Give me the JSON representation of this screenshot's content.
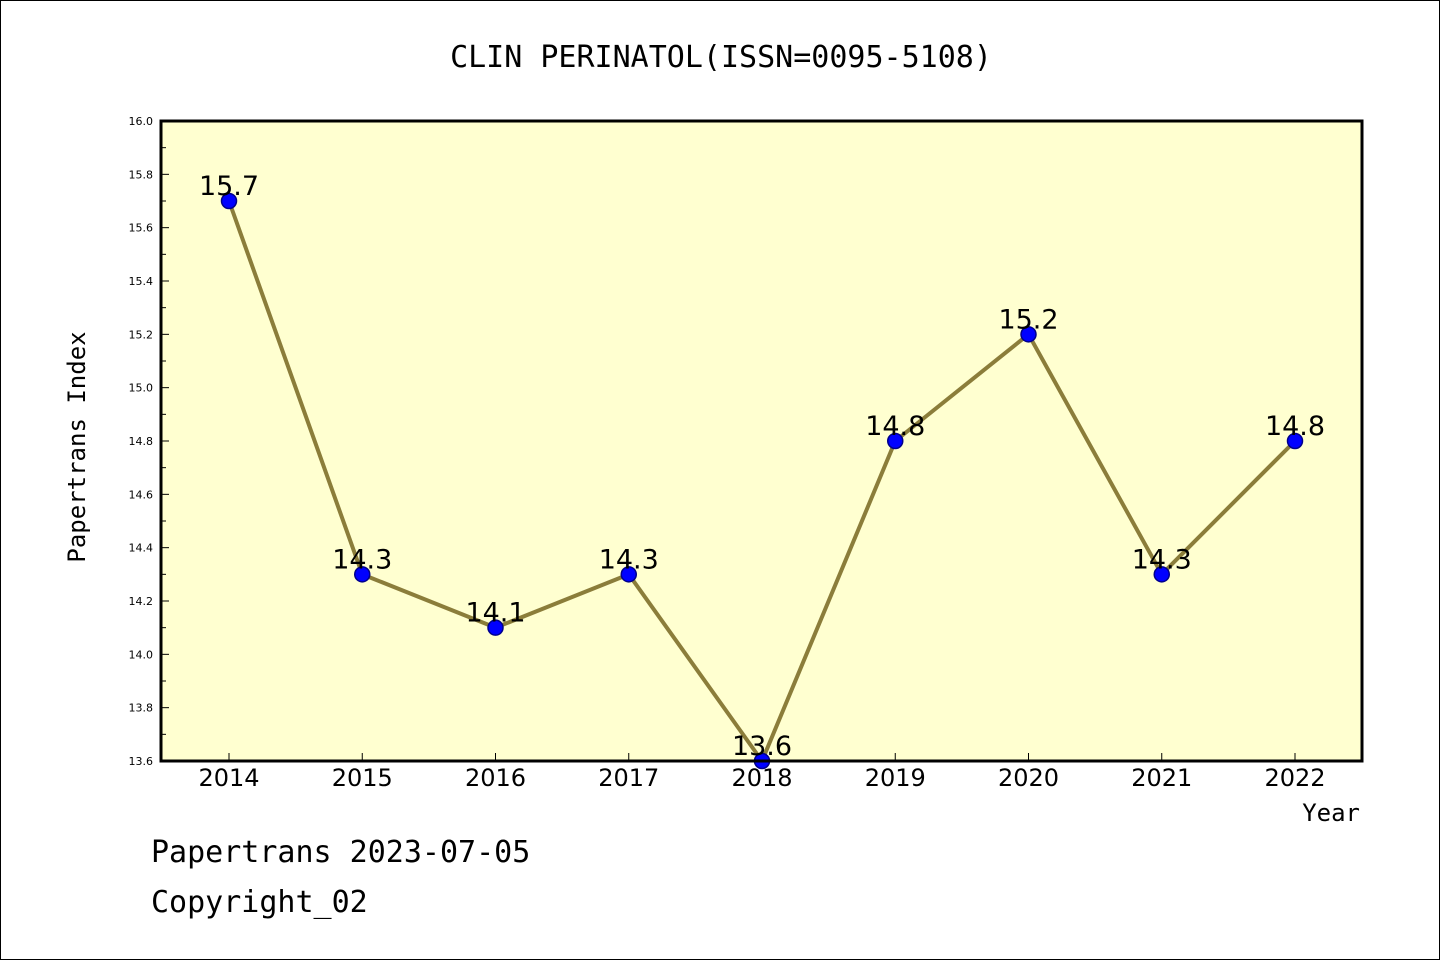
{
  "chart_data": {
    "type": "line",
    "title": "CLIN PERINATOL(ISSN=0095-5108)",
    "xlabel": "Year",
    "ylabel": "Papertrans Index",
    "categories": [
      "2014",
      "2015",
      "2016",
      "2017",
      "2018",
      "2019",
      "2020",
      "2021",
      "2022"
    ],
    "series": [
      {
        "values": [
          15.7,
          14.3,
          14.1,
          14.3,
          13.6,
          14.8,
          15.2,
          14.3,
          14.8
        ],
        "labels": [
          "15.7",
          "14.3",
          "14.1",
          "14.3",
          "13.6",
          "14.8",
          "15.2",
          "14.3",
          "14.8"
        ]
      }
    ],
    "ylim": [
      13.6,
      16.0
    ],
    "yticks": [
      "13.6",
      "13.8",
      "14.0",
      "14.2",
      "14.4",
      "14.6",
      "14.8",
      "15.0",
      "15.2",
      "15.4",
      "15.6",
      "15.8",
      "16.0"
    ],
    "grid": false,
    "legend": "none",
    "colors": {
      "plot_background": "#ffffd0",
      "line": "#8b7d3a",
      "marker": "#0000ff",
      "marker_edge": "#00008b"
    }
  },
  "footer": {
    "line1": "Papertrans 2023-07-05",
    "line2": "Copyright_02"
  }
}
